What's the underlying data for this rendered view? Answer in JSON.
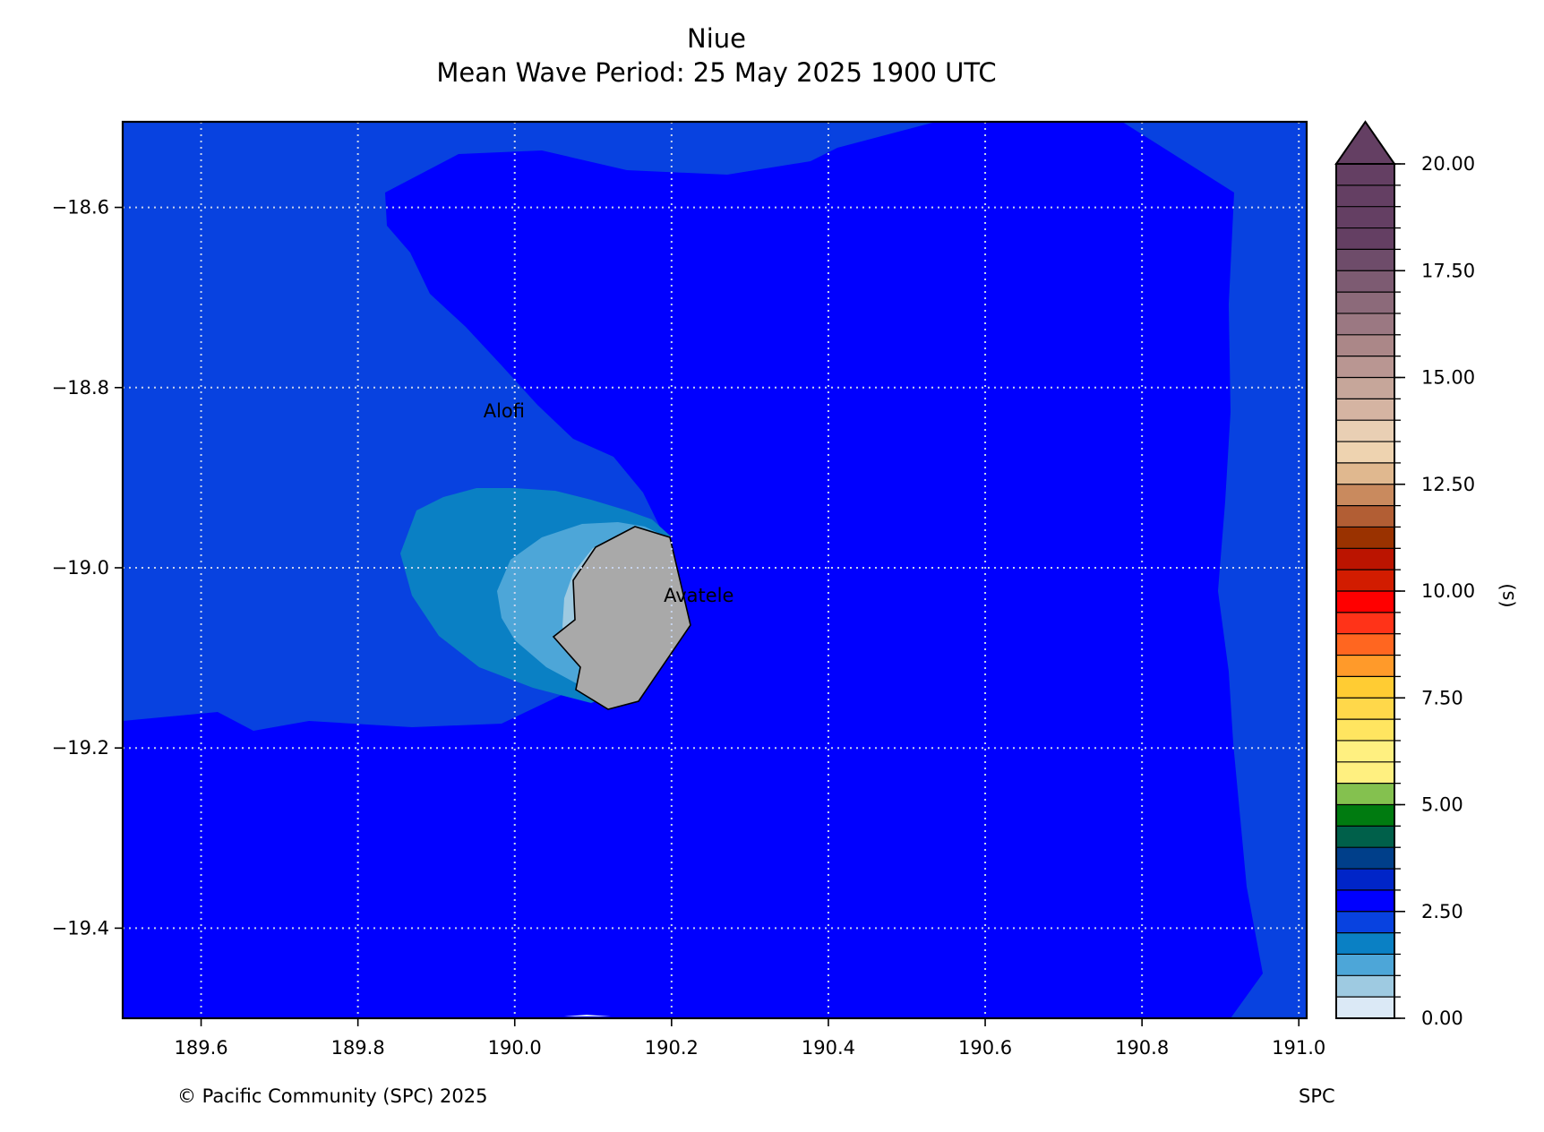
{
  "title": "Niue",
  "subtitle": "Mean Wave Period: 25 May 2025  1900 UTC",
  "copyright": "© Pacific Community (SPC) 2025",
  "source_label": "SPC",
  "map": {
    "x_ticks": [
      {
        "value": 189.6,
        "label": "189.6"
      },
      {
        "value": 189.8,
        "label": "189.8"
      },
      {
        "value": 190.0,
        "label": "190.0"
      },
      {
        "value": 190.2,
        "label": "190.2"
      },
      {
        "value": 190.4,
        "label": "190.4"
      },
      {
        "value": 190.6,
        "label": "190.6"
      },
      {
        "value": 190.8,
        "label": "190.8"
      },
      {
        "value": 191.0,
        "label": "191.0"
      }
    ],
    "y_ticks": [
      {
        "value": -18.6,
        "label": "−18.6"
      },
      {
        "value": -18.8,
        "label": "−18.8"
      },
      {
        "value": -19.0,
        "label": "−19.0"
      },
      {
        "value": -19.2,
        "label": "−19.2"
      },
      {
        "value": -19.4,
        "label": "−19.4"
      }
    ],
    "xlim": [
      189.5,
      191.01
    ],
    "ylim": [
      -19.5,
      -18.505
    ],
    "grid": true,
    "places": [
      {
        "name": "Alofi",
        "lon": 189.96,
        "lat": -18.825
      },
      {
        "name": "Avatele",
        "lon": 190.19,
        "lat": -19.03
      }
    ],
    "land_color": "#a9a9a9"
  },
  "colorbar": {
    "label": "(s)",
    "vmin": 0,
    "vmax": 20,
    "step": 0.5,
    "extend": "max",
    "major_ticks": [
      {
        "value": 0,
        "label": "0.00"
      },
      {
        "value": 2.5,
        "label": "2.50"
      },
      {
        "value": 5,
        "label": "5.00"
      },
      {
        "value": 7.5,
        "label": "7.50"
      },
      {
        "value": 10,
        "label": "10.00"
      },
      {
        "value": 12.5,
        "label": "12.50"
      },
      {
        "value": 15,
        "label": "15.00"
      },
      {
        "value": 17.5,
        "label": "17.50"
      },
      {
        "value": 20,
        "label": "20.00"
      }
    ],
    "colors": [
      "#dbe9f6",
      "#9ecae1",
      "#4da6d8",
      "#0a80c4",
      "#0842e0",
      "#0000ff",
      "#0025c8",
      "#003f8a",
      "#00604a",
      "#007b10",
      "#84c14f",
      "#fff080",
      "#fff080",
      "#ffe560",
      "#ffd84a",
      "#ffcc33",
      "#ff9a2a",
      "#ff6620",
      "#ff3318",
      "#ff0000",
      "#d21c00",
      "#bb1400",
      "#9a3200",
      "#b25e34",
      "#c98a5e",
      "#e0b88f",
      "#eed3b0",
      "#e9cfb4",
      "#d5b4a2",
      "#c6a69a",
      "#b99692",
      "#ab8788",
      "#9b7882",
      "#8c6a7a",
      "#7d5b72",
      "#6e4c6a",
      "#643f63"
    ],
    "extend_color": "#643f63"
  }
}
